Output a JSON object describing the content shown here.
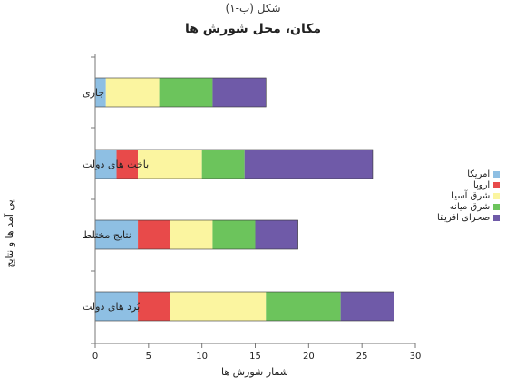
{
  "figure_caption": "شکل (ب-۱)",
  "chart_data": {
    "type": "bar",
    "orientation": "horizontal",
    "stacked": true,
    "title": "مکان، محل شورش ها",
    "xlabel": "شمار شورش ها",
    "ylabel": "پی آمد ها و نتایج",
    "xlim": [
      0,
      30
    ],
    "xticks": [
      0,
      5,
      10,
      15,
      20,
      25,
      30
    ],
    "categories": [
      "جاری",
      "باخت های دولت",
      "نتایج مختلط",
      "بُرد های دولت"
    ],
    "series": [
      {
        "name": "امریکا",
        "color": "#8ebfe3",
        "values": [
          1,
          2,
          4,
          4
        ]
      },
      {
        "name": "اروپا",
        "color": "#e84a4a",
        "values": [
          0,
          2,
          3,
          3
        ]
      },
      {
        "name": "شرق آسیا",
        "color": "#fbf5a0",
        "values": [
          5,
          6,
          4,
          9
        ]
      },
      {
        "name": "شرق میانه",
        "color": "#6cc45c",
        "values": [
          5,
          4,
          4,
          7
        ]
      },
      {
        "name": "صحرای افریقا",
        "color": "#6f5aa8",
        "values": [
          5,
          12,
          4,
          5
        ]
      }
    ],
    "legend_position": "right"
  }
}
